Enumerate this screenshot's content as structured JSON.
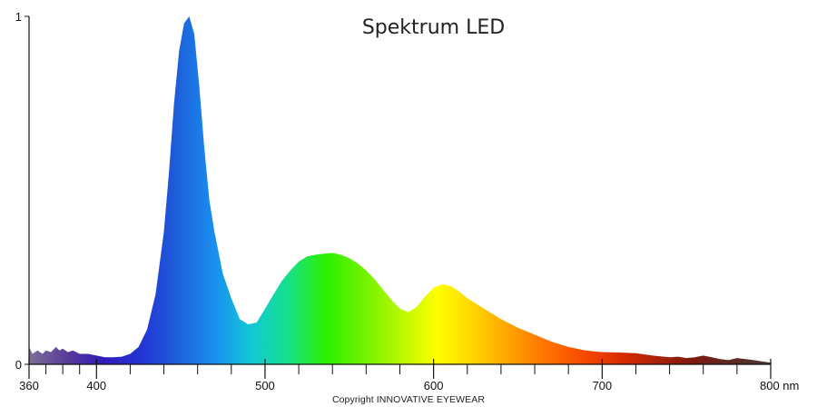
{
  "chart_data": {
    "type": "area",
    "title": "Spektrum LED",
    "xlabel": "",
    "ylabel": "",
    "x_unit": "nm",
    "xlim": [
      360,
      800
    ],
    "ylim": [
      0,
      1
    ],
    "x_tick_labels": [
      {
        "value": 360,
        "label": "360"
      },
      {
        "value": 400,
        "label": "400"
      },
      {
        "value": 500,
        "label": "500"
      },
      {
        "value": 600,
        "label": "600"
      },
      {
        "value": 700,
        "label": "700"
      },
      {
        "value": 800,
        "label": "800 nm"
      }
    ],
    "x_minor_ticks": [
      370,
      380,
      390,
      420,
      440,
      460,
      480,
      520,
      540,
      560,
      580,
      620,
      640,
      660,
      680,
      720,
      740,
      760,
      780
    ],
    "y_tick_labels": [
      {
        "value": 0,
        "label": "0"
      },
      {
        "value": 1,
        "label": "1"
      }
    ],
    "grid": false,
    "legend": "none",
    "series": [
      {
        "x": [
          360,
          362,
          365,
          368,
          370,
          373,
          376,
          378,
          380,
          383,
          386,
          390,
          395,
          400,
          405,
          410,
          415,
          420,
          425,
          430,
          435,
          440,
          443,
          446,
          449,
          452,
          455,
          458,
          461,
          464,
          467,
          470,
          475,
          480,
          485,
          490,
          495,
          500,
          505,
          510,
          515,
          520,
          525,
          530,
          535,
          540,
          545,
          550,
          555,
          560,
          565,
          570,
          575,
          580,
          585,
          590,
          595,
          600,
          605,
          610,
          615,
          620,
          625,
          630,
          640,
          650,
          660,
          670,
          680,
          690,
          700,
          710,
          720,
          730,
          740,
          745,
          750,
          755,
          760,
          765,
          770,
          775,
          780,
          785,
          790,
          795,
          800
        ],
        "y": [
          0.05,
          0.03,
          0.04,
          0.03,
          0.04,
          0.035,
          0.05,
          0.04,
          0.045,
          0.035,
          0.04,
          0.03,
          0.03,
          0.025,
          0.02,
          0.02,
          0.022,
          0.03,
          0.05,
          0.1,
          0.2,
          0.38,
          0.55,
          0.75,
          0.9,
          0.98,
          1.0,
          0.95,
          0.8,
          0.62,
          0.47,
          0.38,
          0.26,
          0.19,
          0.13,
          0.115,
          0.12,
          0.16,
          0.2,
          0.24,
          0.27,
          0.295,
          0.31,
          0.315,
          0.318,
          0.32,
          0.315,
          0.305,
          0.29,
          0.27,
          0.245,
          0.215,
          0.185,
          0.16,
          0.15,
          0.165,
          0.195,
          0.22,
          0.23,
          0.225,
          0.21,
          0.19,
          0.175,
          0.16,
          0.13,
          0.105,
          0.085,
          0.065,
          0.05,
          0.04,
          0.035,
          0.034,
          0.032,
          0.025,
          0.02,
          0.022,
          0.018,
          0.02,
          0.025,
          0.02,
          0.015,
          0.012,
          0.018,
          0.015,
          0.012,
          0.008,
          0.005
        ]
      }
    ],
    "spectrum_colors": [
      "#7b6f97",
      "#5a3d98",
      "#2f1bb8",
      "#2433d4",
      "#1d5fd9",
      "#1a8ff0",
      "#10c9d6",
      "#17e08a",
      "#2bf000",
      "#6ff200",
      "#b7f800",
      "#ffff00",
      "#ffd400",
      "#ffa000",
      "#ff7000",
      "#f54a00",
      "#d82a00",
      "#a8200a",
      "#7a1a10",
      "#5a2a22",
      "#4a3a36"
    ],
    "axis_color": "#111111"
  },
  "footer": {
    "copyright": "Copyright INNOVATIVE EYEWEAR"
  }
}
